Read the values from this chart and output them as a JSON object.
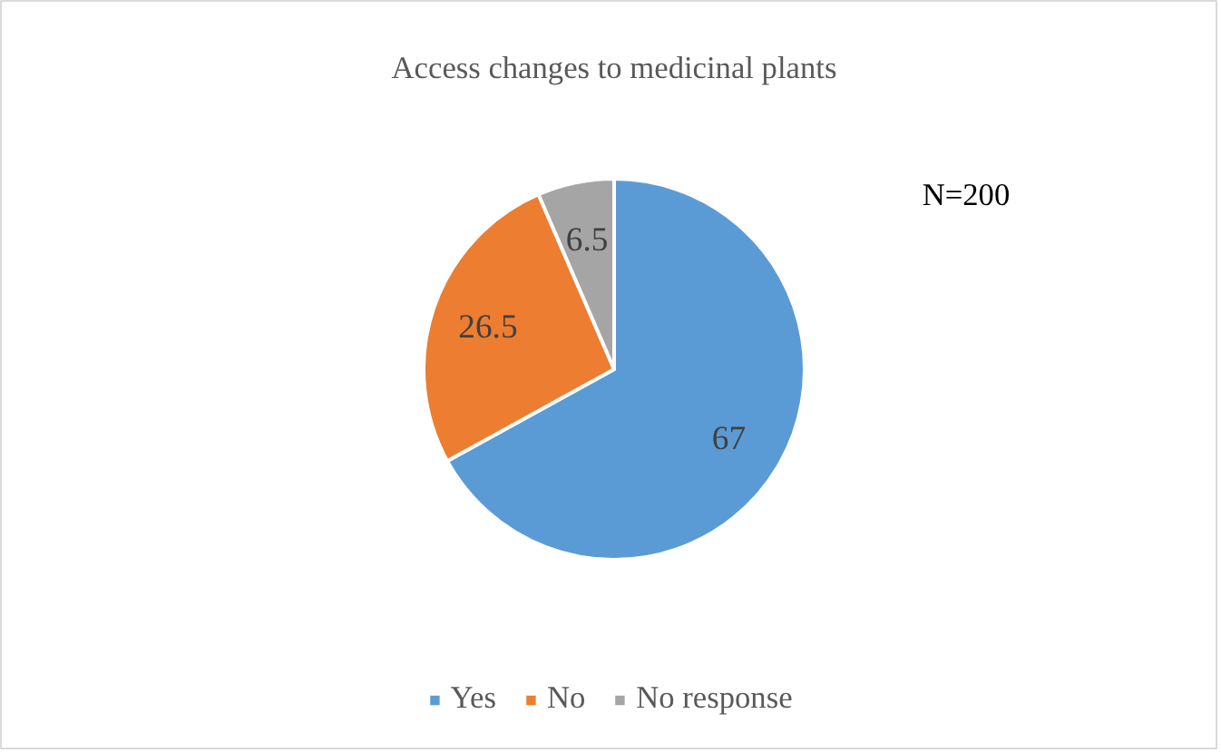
{
  "chart_data": {
    "type": "pie",
    "title": "Access changes to medicinal plants",
    "categories": [
      "Yes",
      "No",
      "No response"
    ],
    "values": [
      67,
      26.5,
      6.5
    ],
    "colors": [
      "#5b9bd5",
      "#ed7d31",
      "#a5a5a5"
    ],
    "data_labels": true,
    "legend": "bottom",
    "annotations": [
      "N=200"
    ]
  }
}
